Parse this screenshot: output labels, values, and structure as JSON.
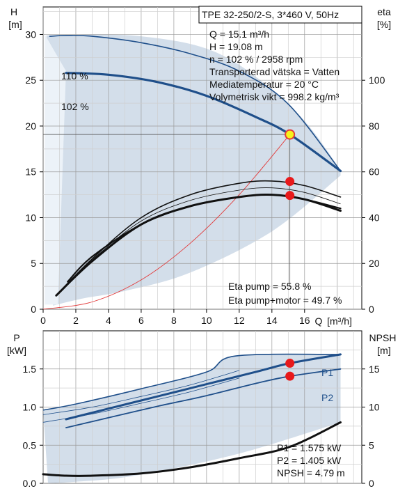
{
  "chart_data": [
    {
      "type": "line",
      "title": "TPE 32-250/2-S, 3*460 V, 50Hz",
      "x_axis": {
        "label": "Q",
        "unit": "[m³/h]",
        "range": [
          0,
          19.5
        ],
        "ticks": [
          0,
          2,
          4,
          6,
          8,
          10,
          12,
          14,
          16
        ]
      },
      "y_left": {
        "label": "H",
        "unit": "[m]",
        "range": [
          0,
          33
        ],
        "ticks": [
          0,
          5,
          10,
          15,
          20,
          25,
          30
        ]
      },
      "y_right": {
        "label": "eta",
        "unit": "[%]",
        "range": [
          0,
          132
        ],
        "ticks": [
          0,
          20,
          40,
          60,
          80,
          100
        ]
      },
      "grid": true,
      "info_lines": [
        "Q = 15.1 m³/h",
        "H = 19.08 m",
        "n = 102 % / 2958 rpm",
        "Transporterad vätska = Vatten",
        "Mediatemperatur = 20 °C",
        "Volymetrisk vikt = 998.2 kg/m³"
      ],
      "eta_lines": [
        "Eta pump = 55.8 %",
        "Eta pump+motor = 49.7 %"
      ],
      "curve_labels": [
        "110 %",
        "102 %"
      ],
      "region_upper": {
        "x": [
          0.2,
          6.0,
          11.0,
          15.5,
          18.2
        ],
        "y": [
          29.9,
          29.8,
          27.7,
          21.5,
          15.2
        ]
      },
      "region_lower": {
        "x": [
          0.6,
          2.5,
          5.0,
          9.0,
          14.0,
          18.2
        ],
        "y": [
          0.4,
          1.2,
          2.0,
          4.0,
          8.5,
          14.6
        ]
      },
      "series": [
        {
          "name": "110 %",
          "axis": "left",
          "x": [
            0.4,
            1.5,
            3.0,
            6.0,
            9.0,
            12.0,
            15.0,
            18.2
          ],
          "y": [
            29.8,
            29.9,
            29.8,
            29.1,
            27.9,
            26.0,
            22.4,
            15.1
          ]
        },
        {
          "name": "102 %",
          "axis": "left",
          "x": [
            1.4,
            4.0,
            7.0,
            10.0,
            13.0,
            15.1,
            18.2
          ],
          "y": [
            25.8,
            25.6,
            24.8,
            23.3,
            21.0,
            19.08,
            15.1
          ]
        },
        {
          "name": "",
          "axis": "left",
          "x": [
            0,
            3,
            6,
            9,
            12,
            15.1
          ],
          "y": [
            0,
            0.8,
            3.2,
            7.2,
            12.5,
            19.08
          ]
        },
        {
          "name": "",
          "axis": "right",
          "x": [
            0.8,
            3,
            6,
            9,
            12,
            14,
            16,
            18.2
          ],
          "y": [
            6,
            22,
            40,
            50,
            55,
            56,
            54,
            49
          ]
        },
        {
          "name": "",
          "axis": "right",
          "x": [
            0.8,
            3,
            6,
            9,
            12,
            14,
            16,
            18.2
          ],
          "y": [
            6,
            21,
            37,
            45,
            49,
            50,
            48,
            43
          ]
        },
        {
          "name": "",
          "axis": "right",
          "x": [
            1.5,
            3,
            6,
            9,
            12,
            14,
            16,
            18.2
          ],
          "y": [
            12,
            23,
            37,
            45,
            49,
            50,
            48,
            44
          ]
        }
      ],
      "operating_point": {
        "x": 15.1,
        "y": 19.08
      },
      "eta_points": [
        {
          "x": 15.1,
          "y": 55.8
        },
        {
          "x": 15.1,
          "y": 49.7
        }
      ]
    },
    {
      "type": "line",
      "x_axis": {
        "range": [
          0,
          19.5
        ]
      },
      "y_left": {
        "label": "P",
        "unit": "[kW]",
        "range": [
          0,
          2.0
        ],
        "ticks": [
          "0.0",
          "0.5",
          "1.0",
          "1.5"
        ]
      },
      "y_right": {
        "label": "NPSH",
        "unit": "[m]",
        "range": [
          0,
          20
        ],
        "ticks": [
          0,
          5,
          10,
          15
        ]
      },
      "grid": true,
      "info_lines": [
        "P1 = 1.575 kW",
        "P2 = 1.405 kW",
        "NPSH = 4.79 m"
      ],
      "curve_labels": [
        "P1",
        "P2"
      ],
      "region_upper": {
        "x": [
          0,
          2,
          6,
          10,
          11.8,
          18.2
        ],
        "y": [
          0.96,
          1.04,
          1.24,
          1.46,
          1.67,
          1.69
        ]
      },
      "region_lower": {
        "x": [
          0.3,
          2,
          5,
          9,
          13,
          18.2
        ],
        "y": [
          0,
          0.02,
          0.08,
          0.24,
          0.45,
          0.8
        ]
      },
      "series": [
        {
          "name": "P1",
          "axis": "left",
          "x": [
            1.4,
            4,
            7,
            10,
            13,
            15.1,
            18.2
          ],
          "y": [
            0.84,
            0.98,
            1.14,
            1.3,
            1.46,
            1.575,
            1.69
          ]
        },
        {
          "name": "P2",
          "axis": "left",
          "x": [
            1.4,
            4,
            7,
            10,
            13,
            15.1,
            18.2
          ],
          "y": [
            0.73,
            0.86,
            1.01,
            1.15,
            1.31,
            1.405,
            1.5
          ]
        },
        {
          "name": "",
          "axis": "left",
          "x": [
            0,
            3,
            6,
            9,
            12
          ],
          "y": [
            0.9,
            1.0,
            1.14,
            1.29,
            1.48
          ]
        },
        {
          "name": "",
          "axis": "left",
          "x": [
            0,
            3,
            6,
            9,
            12
          ],
          "y": [
            0.8,
            0.91,
            1.05,
            1.2,
            1.38
          ]
        },
        {
          "name": "NPSH",
          "axis": "right",
          "x": [
            0,
            1.4,
            3,
            6,
            9,
            12,
            15.1,
            18.2
          ],
          "y": [
            1.2,
            1.0,
            1.0,
            1.3,
            2.1,
            3.3,
            4.79,
            8.0
          ]
        }
      ],
      "points": [
        {
          "x": 15.1,
          "y": 1.575
        },
        {
          "x": 15.1,
          "y": 1.405
        }
      ]
    }
  ]
}
